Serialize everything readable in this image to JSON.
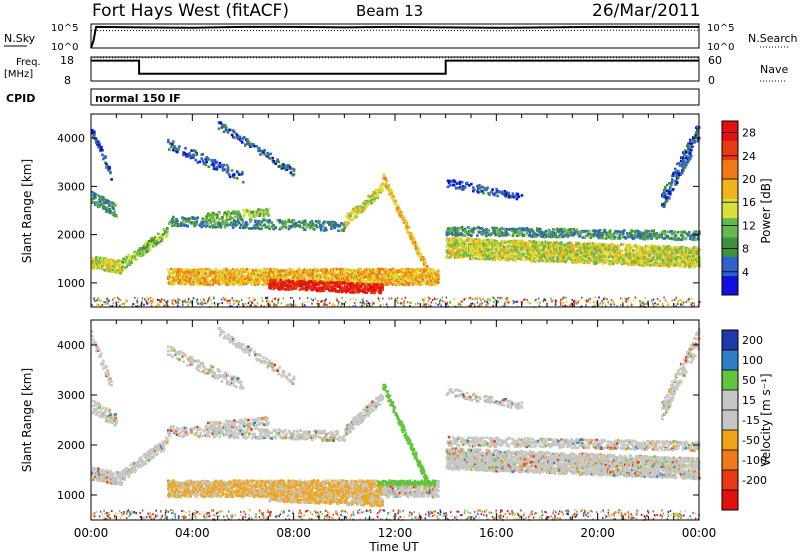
{
  "header": {
    "station": "Fort Hays West (fitACF)",
    "beam": "Beam 13",
    "date": "26/Mar/2011"
  },
  "colors": {
    "power_scale": [
      "#1010e0",
      "#2f62c8",
      "#3f8f3c",
      "#64b84e",
      "#d6e23a",
      "#f2b21c",
      "#f07a18",
      "#e83a12",
      "#e31010"
    ],
    "velocity_scale": [
      "#1f3aa8",
      "#2f7fc4",
      "#62c43c",
      "#c6c6c2",
      "#c6c6c2",
      "#f2a418",
      "#f07a18",
      "#e83a12",
      "#e31010"
    ]
  },
  "chart_data": [
    {
      "type": "line",
      "panel": "nsky-nsearch",
      "left_label": "N.Sky",
      "right_label": "N.Search",
      "left_ticks": [
        "10^5",
        "10^0"
      ],
      "right_ticks": [
        "10^5",
        "10^0"
      ],
      "ylim": [
        0,
        5
      ],
      "yscale": "log",
      "series": [
        {
          "key": "nsky",
          "style": "solid",
          "x_hours": [
            0,
            0.1,
            0.2,
            2,
            4,
            6,
            8,
            10,
            12,
            13.9,
            14,
            16,
            18,
            20,
            22,
            24
          ],
          "values": [
            0,
            1.5,
            4.4,
            4.3,
            4.2,
            4.4,
            4.4,
            4.3,
            4.4,
            4.3,
            4.3,
            4.2,
            4.3,
            4.4,
            4.4,
            4.4
          ]
        },
        {
          "key": "nsearch",
          "style": "dotted",
          "x_hours": [
            0,
            4,
            8,
            12,
            16,
            20,
            24
          ],
          "values": [
            3.6,
            3.7,
            3.6,
            3.7,
            3.6,
            3.7,
            3.7
          ]
        }
      ]
    },
    {
      "type": "line",
      "panel": "freq-nave",
      "left_label": "Freq.",
      "left_unit": "[MHz]",
      "right_label": "Nave",
      "left_ticks": [
        18,
        8
      ],
      "right_ticks": [
        60,
        0
      ],
      "freq_ylim": [
        8,
        18
      ],
      "nave_ylim": [
        0,
        60
      ],
      "series": [
        {
          "key": "freq",
          "style": "solid",
          "x_hours": [
            0,
            1.9,
            1.9,
            14.0,
            14.0,
            24
          ],
          "values": [
            16.5,
            16.5,
            11.0,
            11.0,
            16.5,
            16.5
          ]
        },
        {
          "key": "nave",
          "style": "dotted",
          "x_hours": [
            0,
            24
          ],
          "values": [
            58,
            58
          ]
        }
      ]
    },
    {
      "type": "table",
      "panel": "cpid",
      "label": "CPID",
      "entries": [
        {
          "x_hours": 0.1,
          "text": "normal 150 IF"
        }
      ]
    },
    {
      "type": "heatmap",
      "panel": "power",
      "ylabel": "Slant Range [km]",
      "ylim": [
        500,
        4500
      ],
      "yticks": [
        1000,
        2000,
        3000,
        4000
      ],
      "colorbar_label": "Power [dB]",
      "colorbar_ticks": [
        4,
        8,
        12,
        16,
        20,
        24,
        28
      ],
      "colorbar_range": [
        0,
        30
      ]
    },
    {
      "type": "heatmap",
      "panel": "velocity",
      "ylabel": "Slant Range [km]",
      "ylim": [
        500,
        4500
      ],
      "yticks": [
        1000,
        2000,
        3000,
        4000
      ],
      "colorbar_label": "Velocity [m s⁻¹]",
      "colorbar_ticks": [
        200,
        100,
        50,
        15,
        -15,
        -50,
        -100,
        -200
      ],
      "xlabel": "Time UT",
      "xticks": [
        "00:00",
        "04:00",
        "08:00",
        "12:00",
        "16:00",
        "20:00",
        "00:00"
      ],
      "xlim_hours": [
        0,
        24
      ]
    }
  ]
}
